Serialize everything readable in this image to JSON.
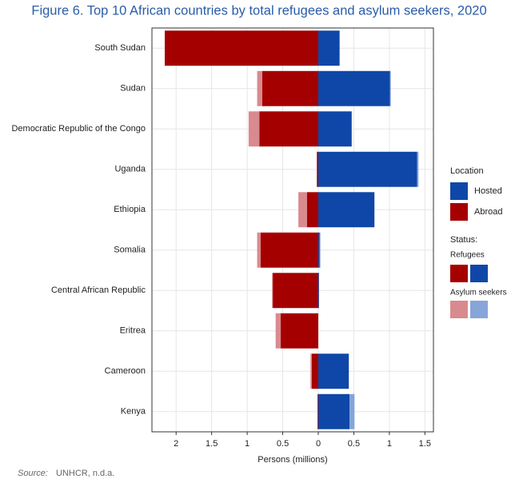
{
  "chart_data": {
    "type": "diverging-stacked-bar",
    "title": "Figure 6. Top 10 African countries by total refugees and asylum seekers, 2020",
    "x_label": "Persons (millions)",
    "source_label": "Source:",
    "source": "UNHCR, n.d.a.",
    "categories": [
      "South Sudan",
      "Sudan",
      "Democratic Republic of the Congo",
      "Uganda",
      "Ethiopia",
      "Somalia",
      "Central African Republic",
      "Eritrea",
      "Cameroon",
      "Kenya"
    ],
    "series": [
      {
        "name": "Hosted",
        "color": "#0f47a8",
        "asylum_color": "#86a5d9",
        "refugees": [
          0.3,
          1.01,
          0.47,
          1.39,
          0.79,
          0.02,
          0.01,
          0,
          0.43,
          0.44
        ],
        "asylum_seekers": [
          0,
          0.01,
          0,
          0.02,
          0,
          0.01,
          0,
          0,
          0,
          0.07
        ]
      },
      {
        "name": "Abroad",
        "color": "#a50000",
        "asylum_color": "#d98a8f",
        "refugees": [
          -2.16,
          -0.79,
          -0.83,
          -0.02,
          -0.16,
          -0.81,
          -0.64,
          -0.53,
          -0.09,
          -0.01
        ],
        "asylum_seekers": [
          0,
          -0.07,
          -0.15,
          0,
          -0.12,
          -0.05,
          -0.01,
          -0.07,
          -0.02,
          0
        ]
      }
    ],
    "legend": {
      "location_title": "Location",
      "status_title": "Status:",
      "refugees_label": "Refugees",
      "asylum_label": "Asylum seekers"
    },
    "xlim": [
      -2.34,
      1.62
    ],
    "xticks": [
      {
        "value": -2,
        "label": "2"
      },
      {
        "value": -1.5,
        "label": "1.5"
      },
      {
        "value": -1,
        "label": "1"
      },
      {
        "value": -0.5,
        "label": "0.5"
      },
      0,
      0.5,
      1,
      1.5
    ],
    "grid": true
  }
}
